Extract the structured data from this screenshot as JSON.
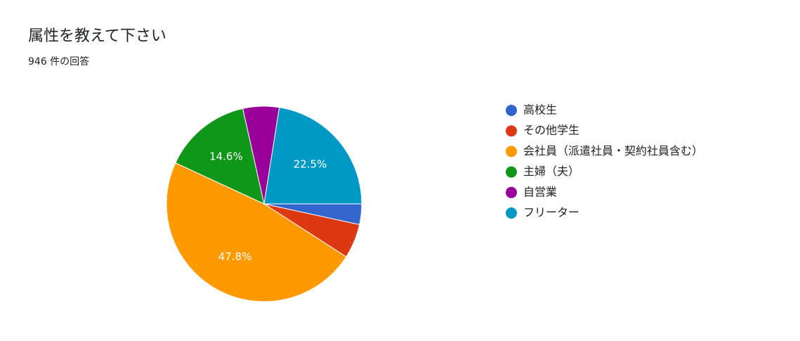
{
  "chart_data": {
    "type": "pie",
    "title": "属性を教えて下さい",
    "subtitle": "946 件の回答",
    "categories": [
      "高校生",
      "その他学生",
      "会社員（派遣社員・契約社員含む）",
      "主婦（夫）",
      "自営業",
      "フリーター"
    ],
    "values": [
      3.4,
      5.7,
      47.8,
      14.6,
      6.0,
      22.5
    ],
    "value_labels": [
      null,
      null,
      "47.8%",
      "14.6%",
      null,
      "22.5%"
    ],
    "colors": [
      "#3366cc",
      "#dc3912",
      "#ff9900",
      "#109618",
      "#990099",
      "#0099c6"
    ],
    "legend": "right"
  }
}
